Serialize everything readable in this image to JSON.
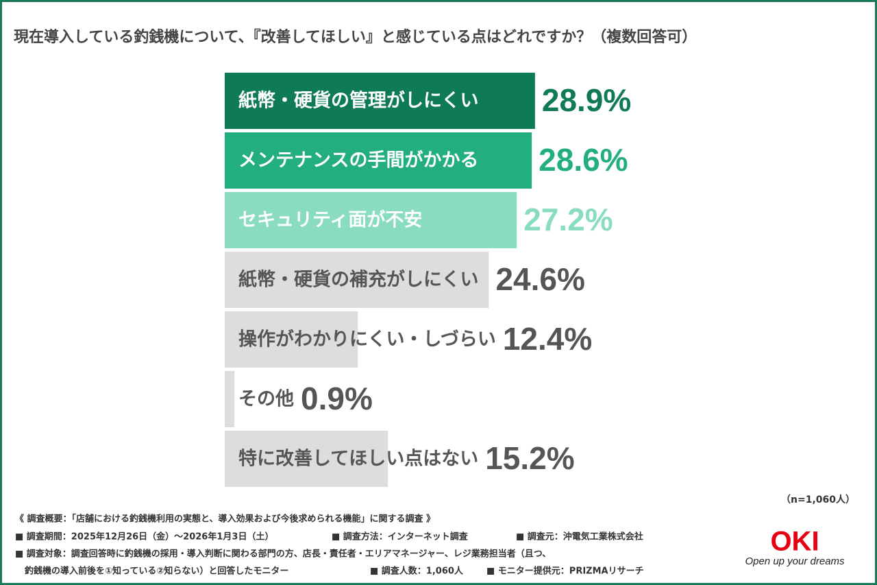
{
  "chart_data": {
    "type": "bar",
    "orientation": "horizontal",
    "title": "現在導入している釣銭機について、『改善してほしい』と感じている点はどれですか？（複数回答可）",
    "categories": [
      "紙幣・硬貨の管理がしにくい",
      "メンテナンスの手間がかかる",
      "セキュリティ面が不安",
      "紙幣・硬貨の補充がしにくい",
      "操作がわかりにくい・しづらい",
      "その他",
      "特に改善してほしい点はない"
    ],
    "values": [
      28.9,
      28.6,
      27.2,
      24.6,
      12.4,
      0.9,
      15.2
    ],
    "value_labels": [
      "28.9%",
      "28.6%",
      "27.2%",
      "24.6%",
      "12.4%",
      "0.9%",
      "15.2%"
    ],
    "colors": [
      "#0f7a56",
      "#23ae81",
      "#8adcc0",
      "#dddddd",
      "#dddddd",
      "#dddddd",
      "#dddddd"
    ],
    "label_colors": [
      "#ffffff",
      "#ffffff",
      "#ffffff",
      "#555555",
      "#555555",
      "#555555",
      "#555555"
    ],
    "value_label_colors": [
      "#0f7a56",
      "#23ae81",
      "#8adcc0",
      "#555555",
      "#555555",
      "#555555",
      "#555555"
    ],
    "note": "（n=1,060人）"
  },
  "footer": {
    "rows": [
      [
        "《 調査概要：「店舗における釣銭機利用の実態と、導入効果および今後求められる機能」に関する調査 》"
      ],
      [
        "■ 調査期間：2025年12月26日（金）～2026年1月3日（土）",
        "■ 調査方法：インターネット調査",
        "■ 調査元：沖電気工業株式会社"
      ],
      [
        "■ 調査対象：調査回答時に釣銭機の採用・導入判断に関わる部門の方、店長・責任者・エリアマネージャー、レジ業務担当者（且つ、"
      ],
      [
        "釣銭機の導入前後を①知っている②知らない）と回答したモニター",
        "■ 調査人数：1,060人",
        "■ モニター提供元：PRIZMAリサーチ"
      ]
    ]
  },
  "logo": {
    "name": "OKI",
    "tagline": "Open up your dreams"
  }
}
